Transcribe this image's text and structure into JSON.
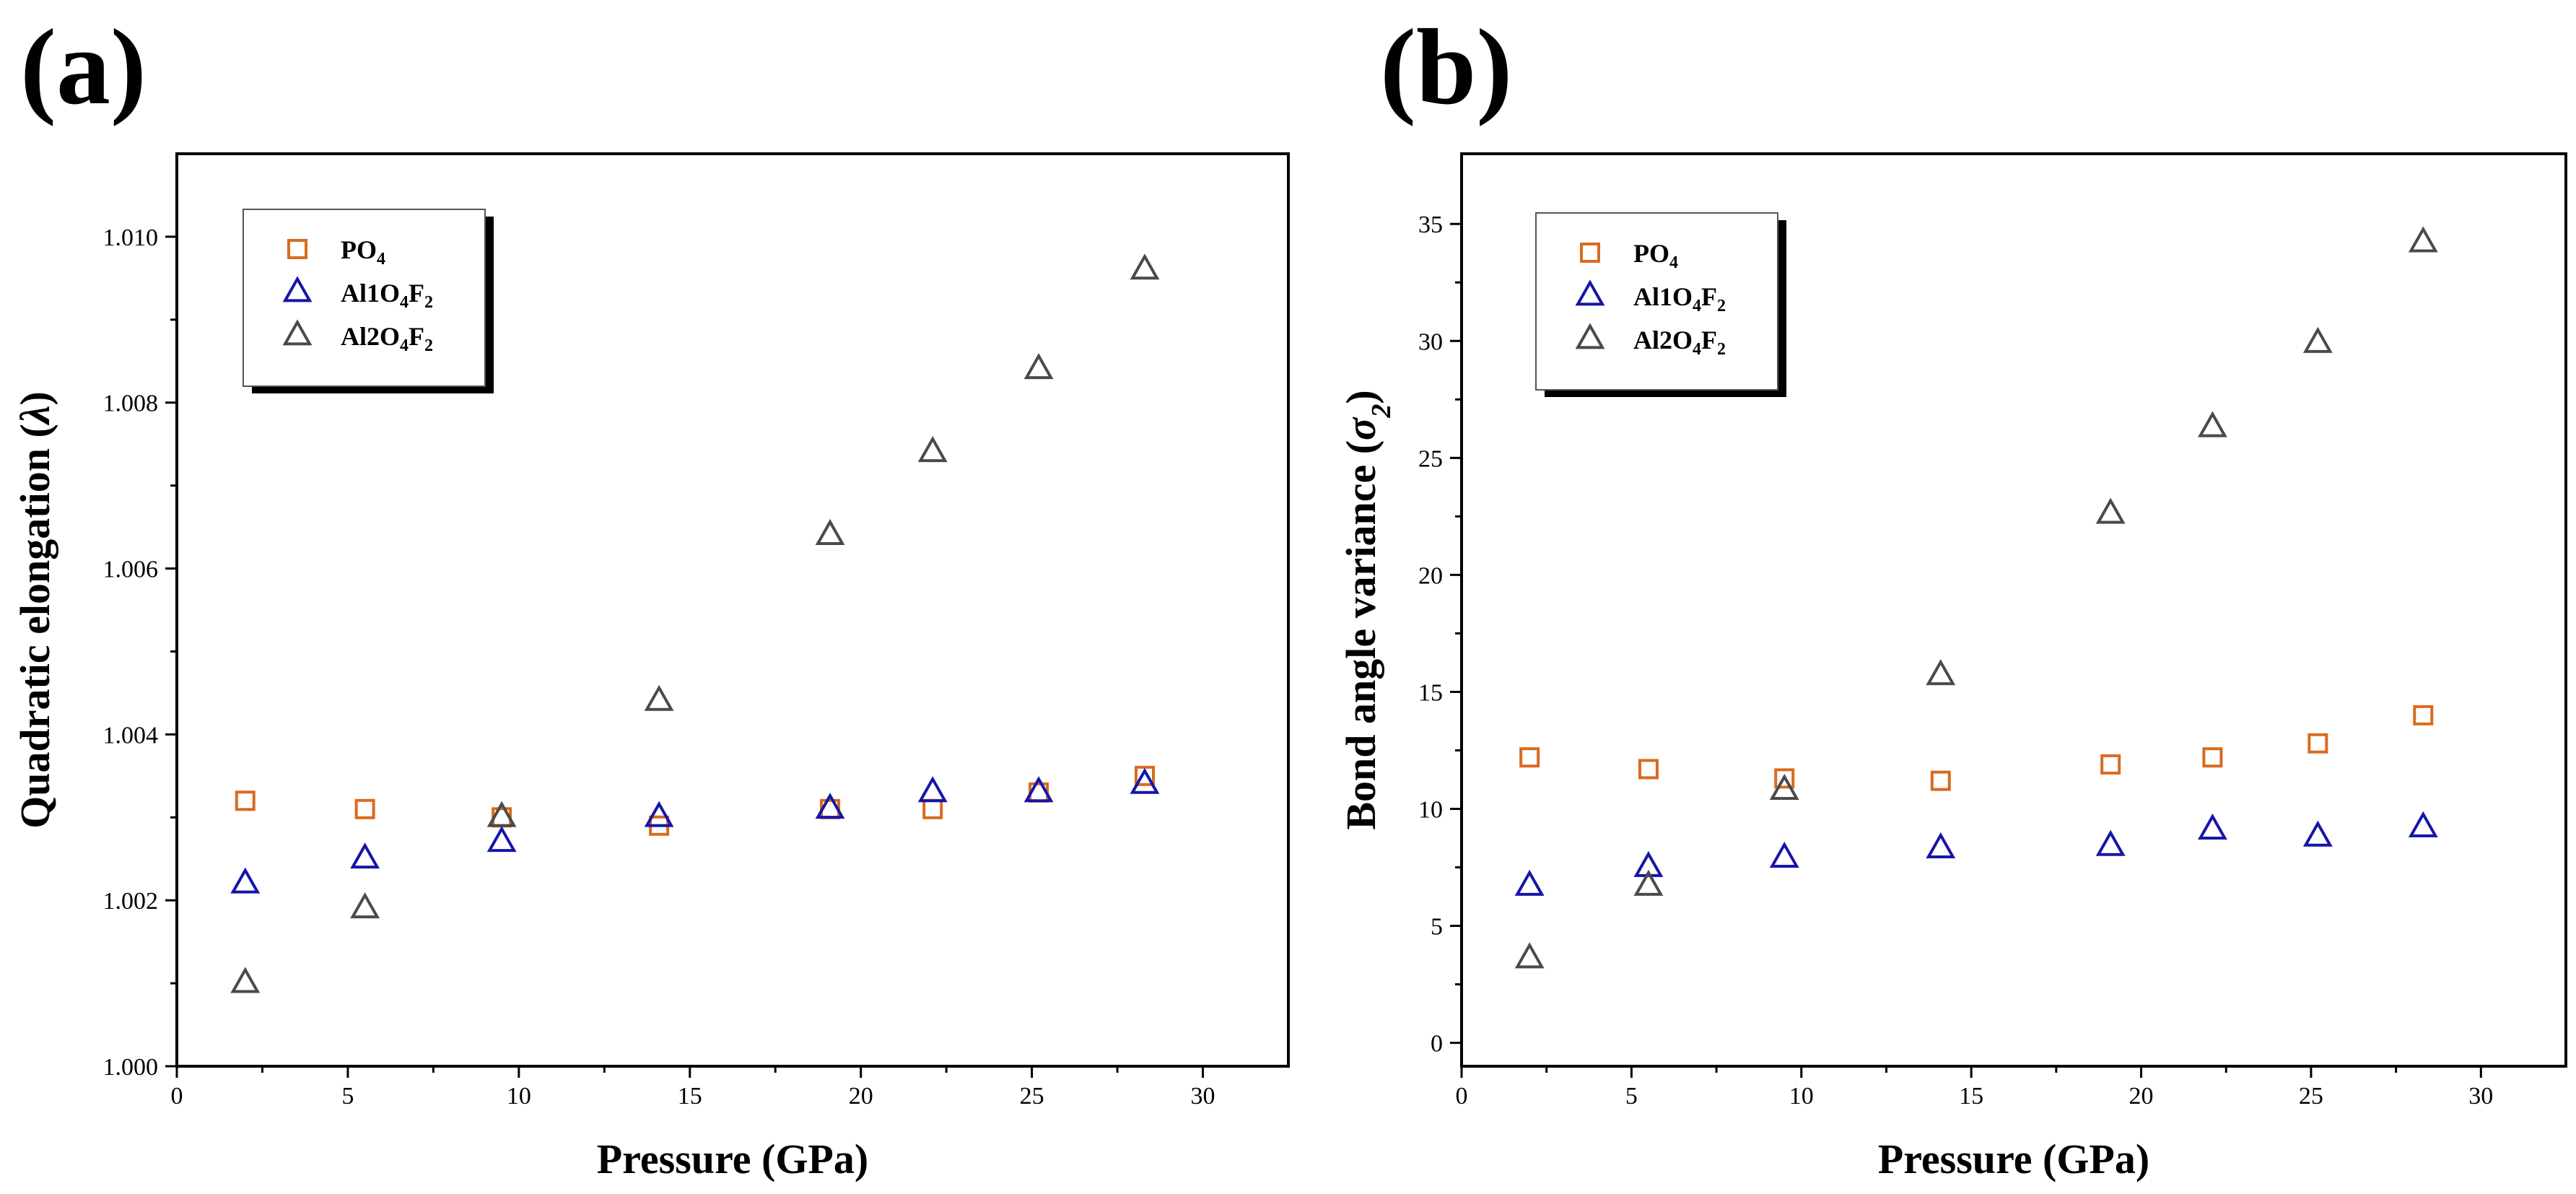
{
  "figure": {
    "panels": [
      "(a)",
      "(b)"
    ]
  },
  "colors": {
    "PO4": "#d96b1f",
    "Al1O4F2": "#1515a8",
    "Al2O4F2": "#4a4a4a"
  },
  "chart_data": [
    {
      "type": "scatter",
      "panel": "(a)",
      "title": "",
      "xlabel": "Pressure (GPa)",
      "ylabel": "Quadratic elongation (λ)",
      "xlim": [
        0,
        32.5
      ],
      "ylim": [
        1.0,
        1.011
      ],
      "xticks": [
        "0",
        "5",
        "10",
        "15",
        "20",
        "25",
        "30"
      ],
      "yticks": [
        "1.000",
        "1.002",
        "1.004",
        "1.006",
        "1.008",
        "1.010"
      ],
      "legend_position": "top-left",
      "series": [
        {
          "name": "PO4",
          "legend_main": "PO",
          "legend_subs": [
            "4"
          ],
          "marker": "square",
          "x": [
            2.0,
            5.5,
            9.5,
            14.1,
            19.1,
            22.1,
            25.2,
            28.3
          ],
          "y": [
            1.0032,
            1.0031,
            1.003,
            1.0029,
            1.0031,
            1.0031,
            1.0033,
            1.0035
          ]
        },
        {
          "name": "Al1O4F2",
          "legend_main": "Al1O",
          "legend_subs": [
            "4",
            "2"
          ],
          "marker": "triangle",
          "x": [
            2.0,
            5.5,
            9.5,
            14.1,
            19.1,
            22.1,
            25.2,
            28.3
          ],
          "y": [
            1.0022,
            1.0025,
            1.0027,
            1.003,
            1.0031,
            1.0033,
            1.0033,
            1.0034
          ]
        },
        {
          "name": "Al2O4F2",
          "legend_main": "Al2O",
          "legend_subs": [
            "4",
            "2"
          ],
          "marker": "triangle",
          "x": [
            2.0,
            5.5,
            9.5,
            14.1,
            19.1,
            22.1,
            25.2,
            28.3
          ],
          "y": [
            1.001,
            1.0019,
            1.003,
            1.0044,
            1.0064,
            1.0074,
            1.0084,
            1.0096
          ]
        }
      ]
    },
    {
      "type": "scatter",
      "panel": "(b)",
      "title": "",
      "xlabel": "Pressure (GPa)",
      "ylabel": "Bond angle variance (σ2)",
      "xlim": [
        0,
        32.5
      ],
      "ylim": [
        -1,
        38
      ],
      "xticks": [
        "0",
        "5",
        "10",
        "15",
        "20",
        "25",
        "30"
      ],
      "yticks": [
        "0",
        "5",
        "10",
        "15",
        "20",
        "25",
        "30",
        "35"
      ],
      "legend_position": "top-left",
      "series": [
        {
          "name": "PO4",
          "legend_main": "PO",
          "legend_subs": [
            "4"
          ],
          "marker": "square",
          "x": [
            2.0,
            5.5,
            9.5,
            14.1,
            19.1,
            22.1,
            25.2,
            28.3
          ],
          "y": [
            12.2,
            11.7,
            11.3,
            11.2,
            11.9,
            12.2,
            12.8,
            14.0
          ]
        },
        {
          "name": "Al1O4F2",
          "legend_main": "Al1O",
          "legend_subs": [
            "4",
            "2"
          ],
          "marker": "triangle",
          "x": [
            2.0,
            5.5,
            9.5,
            14.1,
            19.1,
            22.1,
            25.2,
            28.3
          ],
          "y": [
            6.7,
            7.5,
            7.9,
            8.3,
            8.4,
            9.1,
            8.8,
            9.2
          ]
        },
        {
          "name": "Al2O4F2",
          "legend_main": "Al2O",
          "legend_subs": [
            "4",
            "2"
          ],
          "marker": "triangle",
          "x": [
            2.0,
            5.5,
            9.5,
            14.1,
            19.1,
            22.1,
            25.2,
            28.3
          ],
          "y": [
            3.6,
            6.7,
            10.8,
            15.7,
            22.6,
            26.3,
            29.9,
            34.2
          ]
        }
      ]
    }
  ]
}
